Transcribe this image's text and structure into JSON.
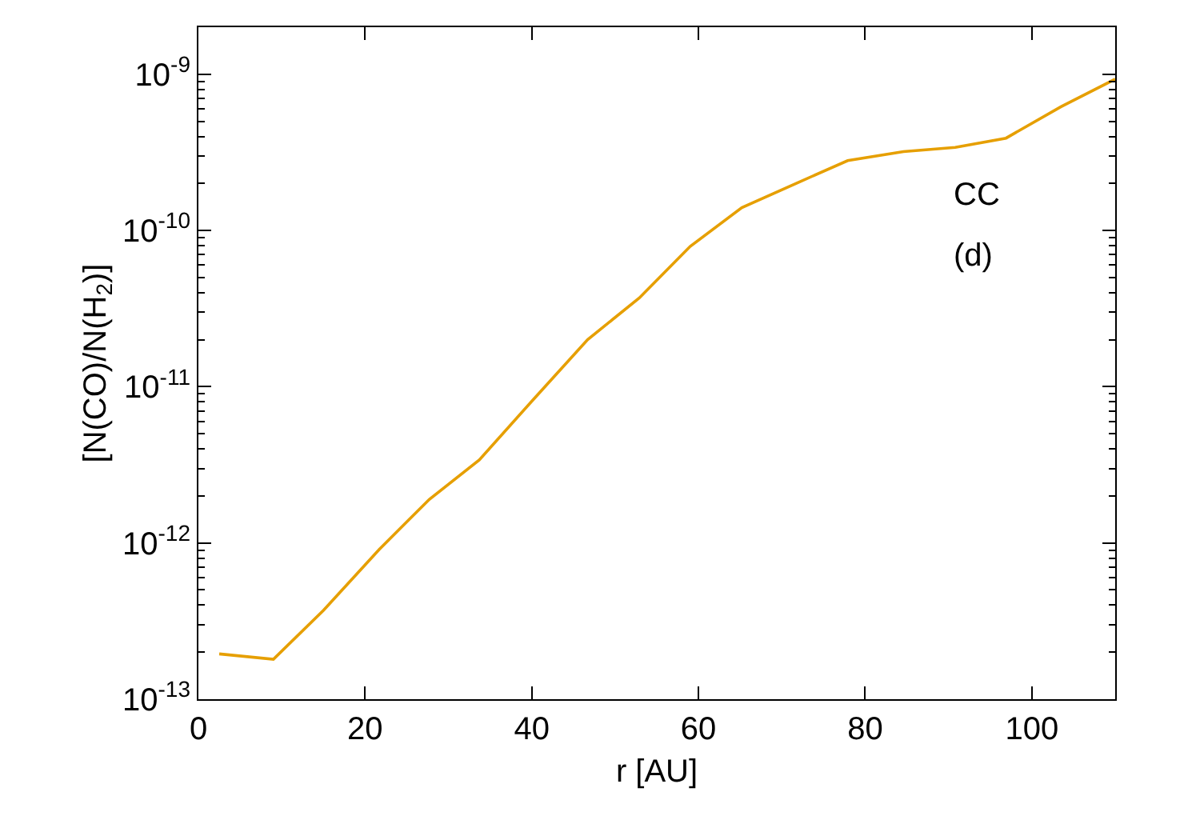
{
  "chart_data": {
    "type": "line",
    "xlabel": "r [AU]",
    "ylabel": "[N(CO)/N(H$_{2}$)]",
    "annotations": [
      "CC",
      "(d)"
    ],
    "x": [
      2.5,
      9.0,
      15.0,
      21.7,
      27.7,
      33.7,
      40.2,
      46.7,
      52.9,
      59.0,
      65.2,
      71.7,
      77.9,
      84.6,
      90.8,
      96.9,
      103.5,
      110.0
    ],
    "series": [
      {
        "color": "#e69f00",
        "values": [
          1.95e-13,
          1.8e-13,
          3.7e-13,
          9.1e-13,
          1.9e-12,
          3.4e-12,
          8.3e-12,
          2e-11,
          3.7e-11,
          7.9e-11,
          1.4e-10,
          2e-10,
          2.8e-10,
          3.2e-10,
          3.4e-10,
          3.9e-10,
          6.2e-10,
          9.3e-10
        ]
      }
    ],
    "xlim": [
      0,
      110
    ],
    "xticks": [
      0,
      20,
      40,
      60,
      80,
      100
    ],
    "ylim": [
      1e-13,
      2e-09
    ],
    "log": "y",
    "yticks": [
      {
        "value": 1e-13,
        "label": "10$^{-13}$"
      },
      {
        "value": 1e-12,
        "label": "10$^{-12}$"
      },
      {
        "value": 1e-11,
        "label": "10$^{-11}$"
      },
      {
        "value": 1e-10,
        "label": "10$^{-10}$"
      },
      {
        "value": 1e-09,
        "label": "10$^{-9}$"
      }
    ],
    "legend": false,
    "marker": "none",
    "line_style": "solid"
  }
}
